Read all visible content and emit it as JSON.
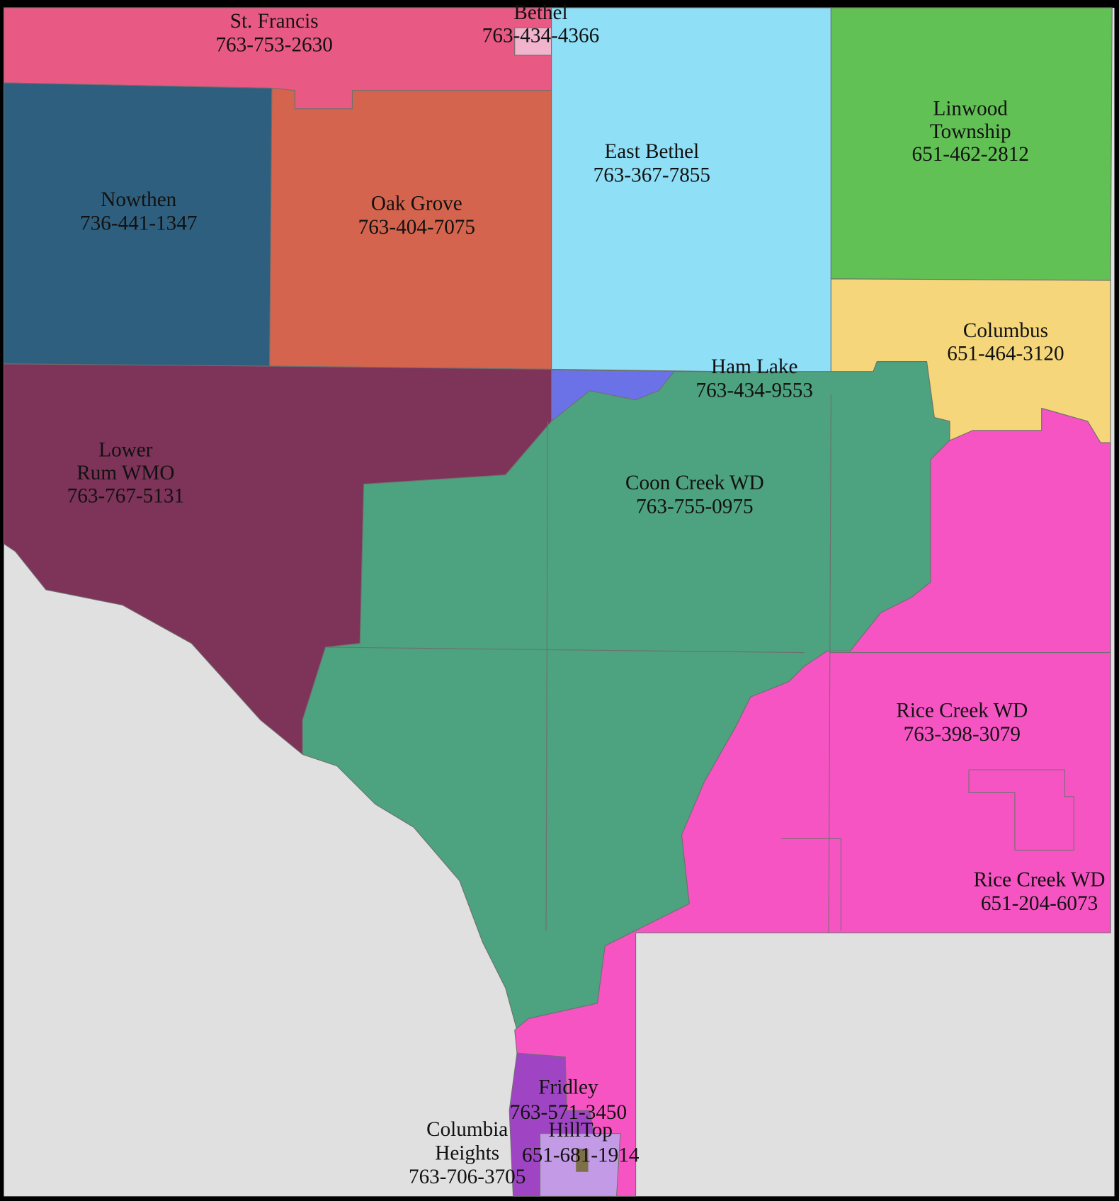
{
  "regions": [
    {
      "name": [
        "St. Francis"
      ],
      "phone": "763-753-2630"
    },
    {
      "name": [
        "Bethel"
      ],
      "phone": "763-434-4366"
    },
    {
      "name": [
        "East Bethel"
      ],
      "phone": "763-367-7855"
    },
    {
      "name": [
        "Linwood",
        "Township"
      ],
      "phone": "651-462-2812"
    },
    {
      "name": [
        "Nowthen"
      ],
      "phone": "736-441-1347"
    },
    {
      "name": [
        "Oak Grove"
      ],
      "phone": "763-404-7075"
    },
    {
      "name": [
        "Columbus"
      ],
      "phone": "651-464-3120"
    },
    {
      "name": [
        "Ham Lake"
      ],
      "phone": "763-434-9553"
    },
    {
      "name": [
        "Lower",
        "Rum WMO"
      ],
      "phone": "763-767-5131"
    },
    {
      "name": [
        "Coon Creek WD"
      ],
      "phone": "763-755-0975"
    },
    {
      "name": [
        "Rice Creek WD"
      ],
      "phone": "763-398-3079"
    },
    {
      "name": [
        "Rice Creek WD"
      ],
      "phone": "651-204-6073"
    },
    {
      "name": [
        "Fridley"
      ],
      "phone": "763-571-3450"
    },
    {
      "name": [
        "Columbia",
        "Heights"
      ],
      "phone": "763-706-3705"
    },
    {
      "name": [
        "HillTop"
      ],
      "phone": "651-681-1914"
    }
  ]
}
